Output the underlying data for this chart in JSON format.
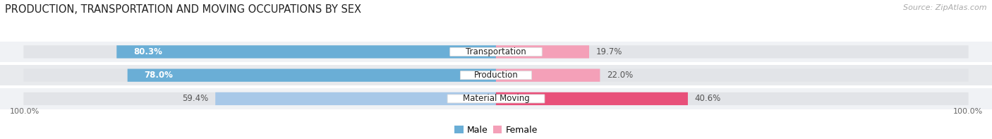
{
  "title": "PRODUCTION, TRANSPORTATION AND MOVING OCCUPATIONS BY SEX",
  "source": "Source: ZipAtlas.com",
  "categories": [
    "Transportation",
    "Production",
    "Material Moving"
  ],
  "male_pct": [
    80.3,
    78.0,
    59.4
  ],
  "female_pct": [
    19.7,
    22.0,
    40.6
  ],
  "male_colors": [
    "#6aaed6",
    "#6aaed6",
    "#a8c8e8"
  ],
  "female_colors": [
    "#f4a0b8",
    "#f4a0b8",
    "#e8507a"
  ],
  "row_bg_colors": [
    "#f0f2f5",
    "#e8eaed",
    "#f0f2f5"
  ],
  "bar_bg_color": "#e2e4e8",
  "label_inside_color": "white",
  "label_outside_color": "#555555",
  "title_fontsize": 10.5,
  "source_fontsize": 8,
  "bar_label_fontsize": 8.5,
  "category_fontsize": 8.5,
  "axis_label_fontsize": 8,
  "bar_height": 0.52,
  "figsize": [
    14.06,
    1.97
  ],
  "dpi": 100
}
